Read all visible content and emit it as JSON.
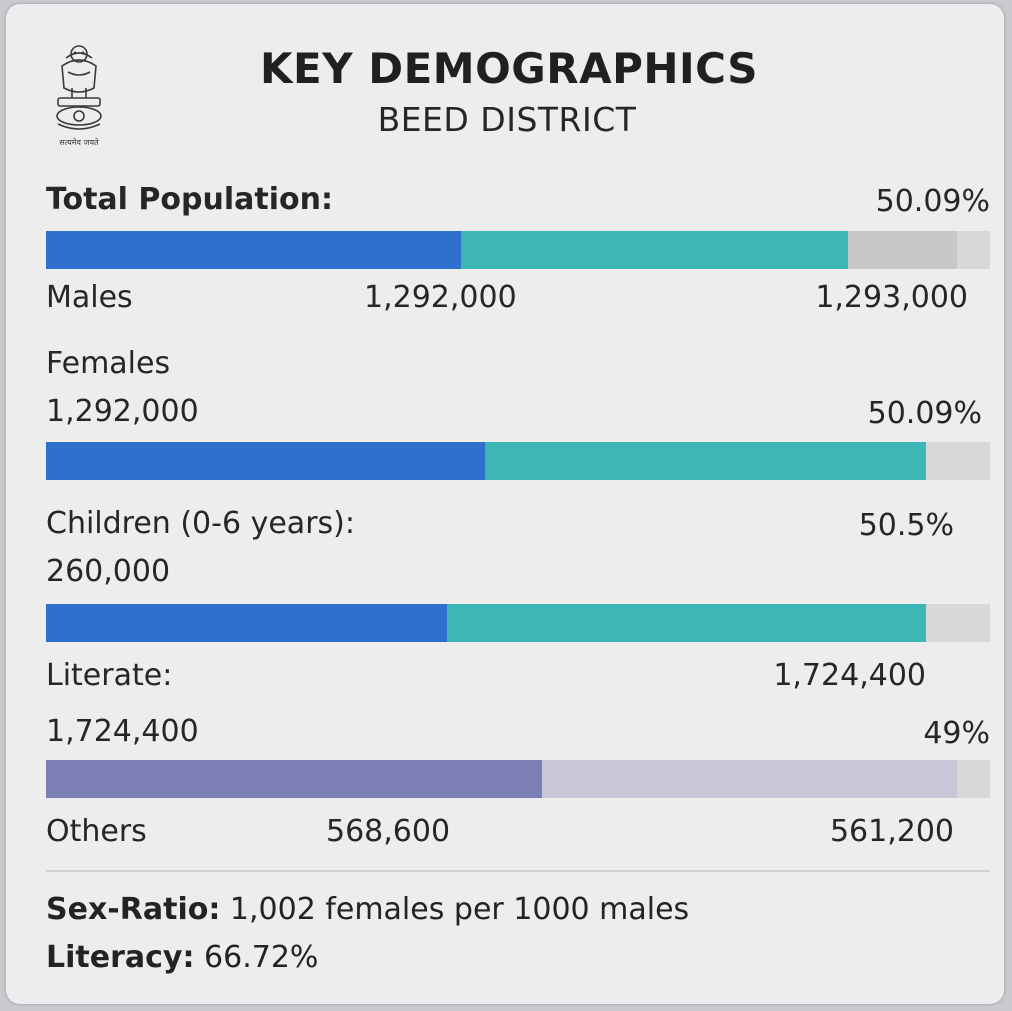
{
  "header": {
    "title": "KEY DEMOGRAPHICS",
    "subtitle": "BEED DISTRICT",
    "emblem_caption": "सत्यमेव जयते"
  },
  "rows": {
    "total": {
      "label": "Total Population:",
      "percent": "50.09%",
      "males_label": "Males",
      "value_mid": "1,292,000",
      "value_right": "1,293,000"
    },
    "females": {
      "label": "Females",
      "value": "1,292,000",
      "percent": "50.09%"
    },
    "children": {
      "label": "Children (0-6 years):",
      "percent": "50.5%",
      "value": "260,000"
    },
    "literate": {
      "label": "Literate:",
      "value_right": "1,724,400",
      "value": "1,724,400",
      "percent": "49%"
    },
    "others": {
      "label": "Others",
      "value_mid": "568,600",
      "value_right": "561,200"
    }
  },
  "footer": {
    "sex_ratio_label": "Sex-Ratio:",
    "sex_ratio_value": "1,002 females per 1000 males",
    "literacy_label": "Literacy:",
    "literacy_value": "66.72%"
  },
  "colors": {
    "blue": "#2f6fce",
    "teal": "#3cb6b7",
    "grey_fill": "#c6c8c6",
    "track": "#d9d7d7",
    "purple": "#7b7fb6",
    "lavender": "#c8c7d8"
  },
  "chart_data": {
    "type": "bar",
    "orientation": "horizontal-stacked",
    "title": "KEY DEMOGRAPHICS",
    "subtitle": "BEED DISTRICT",
    "bars": [
      {
        "name": "total-population",
        "segments": [
          {
            "color": "blue",
            "fraction": 0.44
          },
          {
            "color": "teal",
            "fraction": 0.41
          },
          {
            "color": "grey_fill",
            "fraction": 0.115
          }
        ]
      },
      {
        "name": "females",
        "segments": [
          {
            "color": "blue",
            "fraction": 0.465
          },
          {
            "color": "teal",
            "fraction": 0.467
          }
        ]
      },
      {
        "name": "children",
        "segments": [
          {
            "color": "blue",
            "fraction": 0.425
          },
          {
            "color": "teal",
            "fraction": 0.507
          }
        ]
      },
      {
        "name": "literate-others",
        "segments": [
          {
            "color": "purple",
            "fraction": 0.525
          },
          {
            "color": "lavender",
            "fraction": 0.44
          }
        ]
      }
    ]
  }
}
